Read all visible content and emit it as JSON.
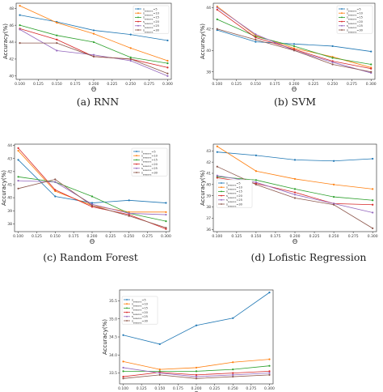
{
  "chart_data": [
    {
      "type": "line",
      "panel": "rnn",
      "caption": "(a) RNN",
      "xlabel": "Θ",
      "ylabel": "Accuracy(%)",
      "x": [
        0.1,
        0.15,
        0.2,
        0.25,
        0.3
      ],
      "xticks": [
        "0.100",
        "0.125",
        "0.150",
        "0.175",
        "0.200",
        "0.225",
        "0.250",
        "0.275",
        "0.300"
      ],
      "ylim": [
        39.6,
        48.6
      ],
      "yticks": [
        {
          "v": 40,
          "label": "40"
        },
        {
          "v": 42,
          "label": "42"
        },
        {
          "v": 44,
          "label": "44"
        },
        {
          "v": 46,
          "label": "46"
        },
        {
          "v": 48,
          "label": "48"
        }
      ],
      "legend_position": "top-right",
      "series": [
        {
          "name": "s_{seasons}=5",
          "color": "#1f77b4",
          "values": [
            47.2,
            46.4,
            45.4,
            44.9,
            44.2
          ]
        },
        {
          "name": "s_{seasons}=10",
          "color": "#ff7f0e",
          "values": [
            48.3,
            46.3,
            45.0,
            43.3,
            41.8
          ]
        },
        {
          "name": "s_{seasons}=15",
          "color": "#2ca02c",
          "values": [
            46.0,
            44.8,
            44.0,
            42.2,
            41.5
          ]
        },
        {
          "name": "s_{seasons}=20",
          "color": "#d62728",
          "values": [
            45.6,
            44.3,
            42.3,
            42.0,
            41.0
          ]
        },
        {
          "name": "s_{seasons}=25",
          "color": "#9467bd",
          "values": [
            45.5,
            43.0,
            42.5,
            41.8,
            40.0
          ]
        },
        {
          "name": "s_{seasons}=30",
          "color": "#8c564b",
          "values": [
            43.9,
            43.9,
            42.3,
            42.0,
            40.3
          ]
        }
      ]
    },
    {
      "type": "line",
      "panel": "svm",
      "caption": "(b) SVM",
      "xlabel": "Θ",
      "ylabel": "Accuracy(%)",
      "x": [
        0.1,
        0.15,
        0.2,
        0.25,
        0.3
      ],
      "xticks": [
        "0.100",
        "0.125",
        "0.150",
        "0.175",
        "0.200",
        "0.225",
        "0.250",
        "0.275",
        "0.300"
      ],
      "ylim": [
        37.3,
        44.4
      ],
      "yticks": [
        {
          "v": 38,
          "label": "38"
        },
        {
          "v": 40,
          "label": "40"
        },
        {
          "v": 42,
          "label": "42"
        },
        {
          "v": 44,
          "label": "44"
        }
      ],
      "legend_position": "top-right",
      "series": [
        {
          "name": "s_{seasons}=5",
          "color": "#1f77b4",
          "values": [
            41.9,
            40.8,
            40.6,
            40.4,
            39.9
          ]
        },
        {
          "name": "s_{seasons}=10",
          "color": "#ff7f0e",
          "values": [
            44.1,
            41.4,
            40.2,
            39.4,
            38.4
          ]
        },
        {
          "name": "s_{seasons}=15",
          "color": "#2ca02c",
          "values": [
            42.9,
            41.3,
            40.4,
            39.3,
            38.7
          ]
        },
        {
          "name": "s_{seasons}=20",
          "color": "#d62728",
          "values": [
            43.8,
            41.2,
            40.1,
            39.0,
            38.3
          ]
        },
        {
          "name": "s_{seasons}=25",
          "color": "#9467bd",
          "values": [
            44.0,
            41.5,
            40.0,
            38.9,
            37.9
          ]
        },
        {
          "name": "s_{seasons}=30",
          "color": "#8c564b",
          "values": [
            42.0,
            41.0,
            40.0,
            38.7,
            38.0
          ]
        }
      ]
    },
    {
      "type": "line",
      "panel": "random_forest",
      "caption": "(c) Random Forest",
      "xlabel": "Θ",
      "ylabel": "Accuracy(%)",
      "x": [
        0.1,
        0.15,
        0.2,
        0.25,
        0.3
      ],
      "xticks": [
        "0.100",
        "0.125",
        "0.150",
        "0.175",
        "0.200",
        "0.225",
        "0.250",
        "0.275",
        "0.300"
      ],
      "ylim": [
        37.4,
        44.1
      ],
      "yticks": [
        {
          "v": 38,
          "label": "38"
        },
        {
          "v": 39,
          "label": "39"
        },
        {
          "v": 40,
          "label": "40"
        },
        {
          "v": 41,
          "label": "41"
        },
        {
          "v": 42,
          "label": "42"
        },
        {
          "v": 43,
          "label": "43"
        },
        {
          "v": 44,
          "label": "44"
        }
      ],
      "legend_position": "top-right",
      "series": [
        {
          "name": "s_{seasons}=5",
          "color": "#1f77b4",
          "values": [
            42.9,
            40.1,
            39.6,
            39.8,
            39.6
          ]
        },
        {
          "name": "s_{seasons}=10",
          "color": "#ff7f0e",
          "values": [
            43.6,
            40.5,
            39.4,
            38.9,
            38.9
          ]
        },
        {
          "name": "s_{seasons}=15",
          "color": "#2ca02c",
          "values": [
            41.6,
            41.2,
            40.1,
            38.8,
            38.2
          ]
        },
        {
          "name": "s_{seasons}=20",
          "color": "#d62728",
          "values": [
            43.8,
            40.6,
            39.3,
            38.7,
            37.6
          ]
        },
        {
          "name": "s_{seasons}=25",
          "color": "#9467bd",
          "values": [
            41.3,
            41.2,
            39.5,
            38.8,
            38.7
          ]
        },
        {
          "name": "s_{seasons}=30",
          "color": "#8c564b",
          "values": [
            40.7,
            41.4,
            39.4,
            38.6,
            37.7
          ]
        }
      ]
    },
    {
      "type": "line",
      "panel": "logistic_regression",
      "caption": "(d) Lofistic Regression",
      "xlabel": "Θ",
      "ylabel": "Accuracy(%)",
      "x": [
        0.1,
        0.15,
        0.2,
        0.25,
        0.3
      ],
      "xticks": [
        "0.100",
        "0.125",
        "0.150",
        "0.175",
        "0.200",
        "0.225",
        "0.250",
        "0.275",
        "0.300"
      ],
      "ylim": [
        35.8,
        43.6
      ],
      "yticks": [
        {
          "v": 36,
          "label": "36"
        },
        {
          "v": 37,
          "label": "37"
        },
        {
          "v": 38,
          "label": "38"
        },
        {
          "v": 39,
          "label": "39"
        },
        {
          "v": 40,
          "label": "40"
        },
        {
          "v": 41,
          "label": "41"
        },
        {
          "v": 42,
          "label": "42"
        },
        {
          "v": 43,
          "label": "43"
        }
      ],
      "legend_position": "left",
      "series": [
        {
          "name": "s_{seasons}=5",
          "color": "#1f77b4",
          "values": [
            42.9,
            42.6,
            42.2,
            42.1,
            42.3
          ]
        },
        {
          "name": "s_{seasons}=10",
          "color": "#ff7f0e",
          "values": [
            43.4,
            41.2,
            40.5,
            40.0,
            39.6
          ]
        },
        {
          "name": "s_{seasons}=15",
          "color": "#2ca02c",
          "values": [
            40.7,
            40.4,
            39.6,
            38.9,
            38.6
          ]
        },
        {
          "name": "s_{seasons}=20",
          "color": "#d62728",
          "values": [
            40.6,
            40.1,
            39.3,
            38.3,
            38.2
          ]
        },
        {
          "name": "s_{seasons}=25",
          "color": "#9467bd",
          "values": [
            40.8,
            40.2,
            39.1,
            38.3,
            37.5
          ]
        },
        {
          "name": "s_{seasons}=30",
          "color": "#8c564b",
          "values": [
            41.6,
            40.0,
            38.8,
            38.2,
            36.1
          ]
        }
      ]
    },
    {
      "type": "line",
      "panel": "fifth",
      "caption": "",
      "xlabel": "Θ",
      "ylabel": "Accuracy(%)",
      "x": [
        0.1,
        0.15,
        0.2,
        0.25,
        0.3
      ],
      "xticks": [
        "0.100",
        "0.125",
        "0.150",
        "0.175",
        "0.200",
        "0.225",
        "0.250",
        "0.275",
        "0.300"
      ],
      "ylim": [
        33.2,
        35.8
      ],
      "yticks": [
        {
          "v": 33.5,
          "label": "33.5"
        },
        {
          "v": 34.0,
          "label": "34.0"
        },
        {
          "v": 34.5,
          "label": "34.5"
        },
        {
          "v": 35.0,
          "label": "35.0"
        },
        {
          "v": 35.5,
          "label": "35.5"
        }
      ],
      "legend_position": "top-left",
      "series": [
        {
          "name": "s_{seasons}=5",
          "color": "#1f77b4",
          "values": [
            34.55,
            34.3,
            34.82,
            35.02,
            35.73
          ]
        },
        {
          "name": "s_{seasons}=10",
          "color": "#ff7f0e",
          "values": [
            33.82,
            33.6,
            33.65,
            33.8,
            33.88
          ]
        },
        {
          "name": "s_{seasons}=15",
          "color": "#2ca02c",
          "values": [
            33.55,
            33.55,
            33.55,
            33.6,
            33.7
          ]
        },
        {
          "name": "s_{seasons}=20",
          "color": "#d62728",
          "values": [
            33.4,
            33.52,
            33.45,
            33.5,
            33.55
          ]
        },
        {
          "name": "s_{seasons}=25",
          "color": "#9467bd",
          "values": [
            33.65,
            33.5,
            33.4,
            33.45,
            33.5
          ]
        },
        {
          "name": "s_{seasons}=30",
          "color": "#8c564b",
          "values": [
            33.35,
            33.45,
            33.35,
            33.4,
            33.45
          ]
        }
      ]
    }
  ]
}
